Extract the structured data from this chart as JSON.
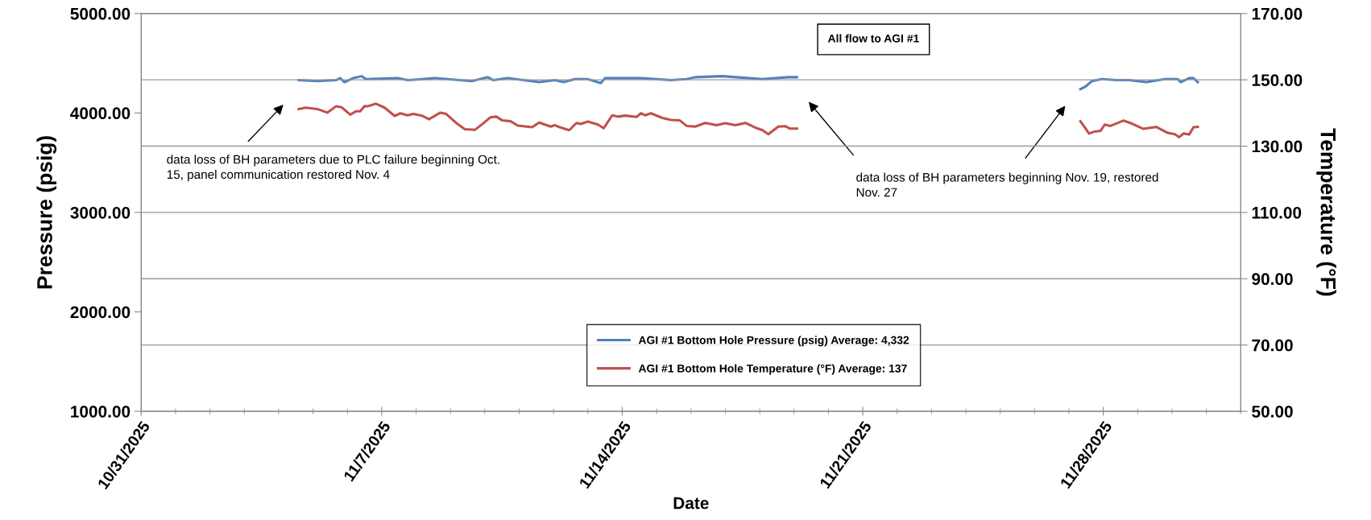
{
  "chart_data": {
    "type": "line",
    "xlabel": "Date",
    "ylabel": "Pressure (psig)",
    "y2label": "Temperature (°F)",
    "xlim": [
      "2025-10-31",
      "2025-12-02"
    ],
    "xticks": [
      {
        "value": "2025-10-31",
        "label": "10/31/2025"
      },
      {
        "value": "2025-11-07",
        "label": "11/7/2025"
      },
      {
        "value": "2025-11-14",
        "label": "11/14/2025"
      },
      {
        "value": "2025-11-21",
        "label": "11/21/2025"
      },
      {
        "value": "2025-11-28",
        "label": "11/28/2025"
      }
    ],
    "ylim": [
      1000,
      5000
    ],
    "yticks": [
      {
        "value": 1000,
        "label": "1000.00"
      },
      {
        "value": 2000,
        "label": "2000.00"
      },
      {
        "value": 3000,
        "label": "3000.00"
      },
      {
        "value": 4000,
        "label": "4000.00"
      },
      {
        "value": 5000,
        "label": "5000.00"
      }
    ],
    "y2lim": [
      50,
      170
    ],
    "y2ticks": [
      {
        "value": 50,
        "label": "50.00"
      },
      {
        "value": 70,
        "label": "70.00"
      },
      {
        "value": 90,
        "label": "90.00"
      },
      {
        "value": 110,
        "label": "110.00"
      },
      {
        "value": 130,
        "label": "130.00"
      },
      {
        "value": 150,
        "label": "150.00"
      },
      {
        "value": 170,
        "label": "170.00"
      }
    ],
    "grid": "y2",
    "legend": "bottom",
    "marker": "none",
    "line_style": "solid",
    "annotations": [
      "All flow to AGI #1",
      "data loss of BH parameters due to PLC failure beginning Oct. 15, panel communication restored Nov. 4",
      "data loss of BH parameters beginning Nov. 19, restored Nov. 27"
    ],
    "series": [
      {
        "name": "AGI #1 Bottom Hole Pressure (psig) Average: 4,332",
        "color": "#4f81bd",
        "x": [
          "2025-11-04T14:00",
          "2025-11-05T03:00",
          "2025-11-05T16:00",
          "2025-11-05T19:00",
          "2025-11-05T22:00",
          "2025-11-06T04:00",
          "2025-11-06T10:00",
          "2025-11-06T13:00",
          "2025-11-07T11:00",
          "2025-11-07T18:00",
          "2025-11-08T13:00",
          "2025-11-09T15:00",
          "2025-11-10T02:00",
          "2025-11-10T06:00",
          "2025-11-10T16:00",
          "2025-11-11T14:00",
          "2025-11-12T01:00",
          "2025-11-12T07:00",
          "2025-11-12T15:00",
          "2025-11-13T00:00",
          "2025-11-13T09:00",
          "2025-11-13T12:00",
          "2025-11-13T17:00",
          "2025-11-14T13:00",
          "2025-11-15T10:00",
          "2025-11-15T21:00",
          "2025-11-16T03:00",
          "2025-11-16T22:00",
          "2025-11-17T07:00",
          "2025-11-18T02:00",
          "2025-11-18T20:00",
          "2025-11-19T02:00",
          "2025-11-23T00:00",
          "2025-11-27T08:00",
          "2025-11-27T11:00",
          "2025-11-27T16:00",
          "2025-11-27T23:00",
          "2025-11-28T09:00",
          "2025-11-28T18:00",
          "2025-11-29T06:00",
          "2025-11-29T19:00",
          "2025-11-30T04:00",
          "2025-11-30T06:00",
          "2025-11-30T12:00",
          "2025-11-30T15:00",
          "2025-11-30T18:00"
        ],
        "values": [
          4330,
          4320,
          4330,
          4350,
          4310,
          4350,
          4370,
          4340,
          4350,
          4330,
          4350,
          4320,
          4360,
          4330,
          4350,
          4310,
          4330,
          4310,
          4340,
          4340,
          4300,
          4350,
          4350,
          4350,
          4330,
          4340,
          4360,
          4370,
          4360,
          4340,
          4360,
          4360,
          null,
          4240,
          4260,
          4320,
          4340,
          4330,
          4330,
          4310,
          4340,
          4340,
          4310,
          4350,
          4350,
          4310
        ]
      },
      {
        "name": "AGI #1 Bottom Hole Temperature (°F) Average: 137",
        "color": "#c0504d",
        "axis": "y2",
        "x": [
          "2025-11-04T14:00",
          "2025-11-04T19:00",
          "2025-11-05T03:00",
          "2025-11-05T10:00",
          "2025-11-05T16:00",
          "2025-11-05T20:00",
          "2025-11-06T02:00",
          "2025-11-06T06:00",
          "2025-11-06T09:00",
          "2025-11-06T12:00",
          "2025-11-06T14:00",
          "2025-11-06T20:00",
          "2025-11-07T02:00",
          "2025-11-07T09:00",
          "2025-11-07T13:00",
          "2025-11-07T18:00",
          "2025-11-07T22:00",
          "2025-11-08T04:00",
          "2025-11-08T09:00",
          "2025-11-08T17:00",
          "2025-11-08T21:00",
          "2025-11-09T04:00",
          "2025-11-09T10:00",
          "2025-11-09T17:00",
          "2025-11-09T23:00",
          "2025-11-10T04:00",
          "2025-11-10T08:00",
          "2025-11-10T12:00",
          "2025-11-10T18:00",
          "2025-11-10T23:00",
          "2025-11-11T09:00",
          "2025-11-11T14:00",
          "2025-11-11T22:00",
          "2025-11-12T01:00",
          "2025-11-12T03:00",
          "2025-11-12T11:00",
          "2025-11-12T16:00",
          "2025-11-12T19:00",
          "2025-11-13T00:00",
          "2025-11-13T07:00",
          "2025-11-13T11:00",
          "2025-11-13T17:00",
          "2025-11-13T21:00",
          "2025-11-14T02:00",
          "2025-11-14T10:00",
          "2025-11-14T13:00",
          "2025-11-14T16:00",
          "2025-11-14T20:00",
          "2025-11-15T04:00",
          "2025-11-15T10:00",
          "2025-11-15T16:00",
          "2025-11-15T21:00",
          "2025-11-16T03:00",
          "2025-11-16T10:00",
          "2025-11-16T18:00",
          "2025-11-17T00:00",
          "2025-11-17T07:00",
          "2025-11-17T14:00",
          "2025-11-17T22:00",
          "2025-11-18T02:00",
          "2025-11-18T06:00",
          "2025-11-18T13:00",
          "2025-11-18T18:00",
          "2025-11-18T21:00",
          "2025-11-19T02:00",
          "2025-11-23T00:00",
          "2025-11-27T08:00",
          "2025-11-27T11:00",
          "2025-11-27T14:00",
          "2025-11-27T18:00",
          "2025-11-27T22:00",
          "2025-11-28T01:00",
          "2025-11-28T05:00",
          "2025-11-28T14:00",
          "2025-11-28T20:00",
          "2025-11-29T04:00",
          "2025-11-29T13:00",
          "2025-11-29T21:00",
          "2025-11-30T02:00",
          "2025-11-30T05:00",
          "2025-11-30T08:00",
          "2025-11-30T12:00",
          "2025-11-30T15:00",
          "2025-11-30T18:00"
        ],
        "values": [
          141.2,
          141.6,
          141.2,
          140.1,
          142.0,
          141.7,
          139.5,
          140.5,
          140.5,
          142.1,
          142.0,
          142.8,
          141.6,
          139.1,
          139.9,
          139.3,
          139.7,
          139.2,
          138.1,
          140.1,
          139.7,
          137.0,
          135.1,
          134.9,
          136.9,
          138.7,
          138.9,
          137.8,
          137.5,
          136.2,
          135.7,
          137.1,
          135.9,
          136.3,
          135.9,
          134.8,
          137.0,
          136.7,
          137.4,
          136.5,
          135.4,
          139.3,
          138.9,
          139.2,
          138.8,
          139.9,
          139.3,
          139.9,
          138.5,
          137.9,
          137.8,
          136.1,
          135.9,
          137.0,
          136.3,
          136.9,
          136.3,
          137.0,
          135.4,
          134.8,
          133.6,
          135.9,
          136.0,
          135.3,
          135.3,
          null,
          137.5,
          135.7,
          133.8,
          134.4,
          134.6,
          136.5,
          136.1,
          137.7,
          136.8,
          135.2,
          135.8,
          134.0,
          133.6,
          132.7,
          133.8,
          133.5,
          135.7,
          135.8
        ]
      }
    ]
  }
}
